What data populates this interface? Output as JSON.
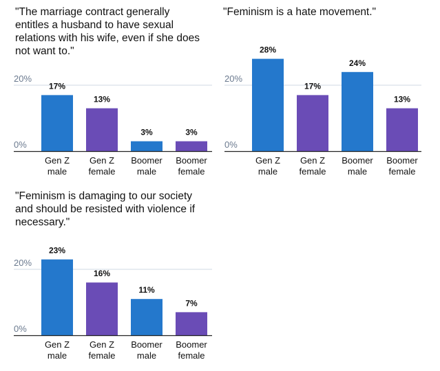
{
  "colors": {
    "male": "#2478cc",
    "female": "#6a4cb6",
    "grid": "#cfd8e3",
    "baseline": "#222222"
  },
  "chart_data": [
    {
      "type": "bar",
      "title": "\"The marriage contract generally entitles a husband to have sexual relations with his wife, even if she does not want to.\"",
      "title_lines": [
        "\"The marriage contract generally",
        "entitles a husband to have sexual",
        "relations with his wife, even if she does",
        "not want to.\""
      ],
      "categories": [
        "Gen Z male",
        "Gen Z female",
        "Boomer male",
        "Boomer female"
      ],
      "category_lines": [
        [
          "Gen Z",
          "male"
        ],
        [
          "Gen Z",
          "female"
        ],
        [
          "Boomer",
          "male"
        ],
        [
          "Boomer",
          "female"
        ]
      ],
      "values": [
        17,
        13,
        3,
        3
      ],
      "value_labels": [
        "17%",
        "13%",
        "3%",
        "3%"
      ],
      "bar_colors": [
        "#2478cc",
        "#6a4cb6",
        "#2478cc",
        "#6a4cb6"
      ],
      "yticks": [
        0,
        20
      ],
      "ytick_labels": [
        "0%",
        "20%"
      ],
      "ylim": [
        0,
        30
      ],
      "grid": true
    },
    {
      "type": "bar",
      "title": "\"Feminism is a hate movement.\"",
      "title_lines": [
        "\"Feminism is a hate movement.\""
      ],
      "categories": [
        "Gen Z male",
        "Gen Z female",
        "Boomer male",
        "Boomer female"
      ],
      "category_lines": [
        [
          "Gen Z",
          "male"
        ],
        [
          "Gen Z",
          "female"
        ],
        [
          "Boomer",
          "male"
        ],
        [
          "Boomer",
          "female"
        ]
      ],
      "values": [
        28,
        17,
        24,
        13
      ],
      "value_labels": [
        "28%",
        "17%",
        "24%",
        "13%"
      ],
      "bar_colors": [
        "#2478cc",
        "#6a4cb6",
        "#2478cc",
        "#6a4cb6"
      ],
      "yticks": [
        0,
        20
      ],
      "ytick_labels": [
        "0%",
        "20%"
      ],
      "ylim": [
        0,
        30
      ],
      "grid": true
    },
    {
      "type": "bar",
      "title": "\"Feminism is damaging to our society and should be resisted with violence if necessary.\"",
      "title_lines": [
        "\"Feminism is damaging to our society",
        "and should be resisted with violence if",
        "necessary.\""
      ],
      "categories": [
        "Gen Z male",
        "Gen Z female",
        "Boomer male",
        "Boomer female"
      ],
      "category_lines": [
        [
          "Gen Z",
          "male"
        ],
        [
          "Gen Z",
          "female"
        ],
        [
          "Boomer",
          "male"
        ],
        [
          "Boomer",
          "female"
        ]
      ],
      "values": [
        23,
        16,
        11,
        7
      ],
      "value_labels": [
        "23%",
        "16%",
        "11%",
        "7%"
      ],
      "bar_colors": [
        "#2478cc",
        "#6a4cb6",
        "#2478cc",
        "#6a4cb6"
      ],
      "yticks": [
        0,
        20
      ],
      "ytick_labels": [
        "0%",
        "20%"
      ],
      "ylim": [
        0,
        30
      ],
      "grid": true
    }
  ]
}
